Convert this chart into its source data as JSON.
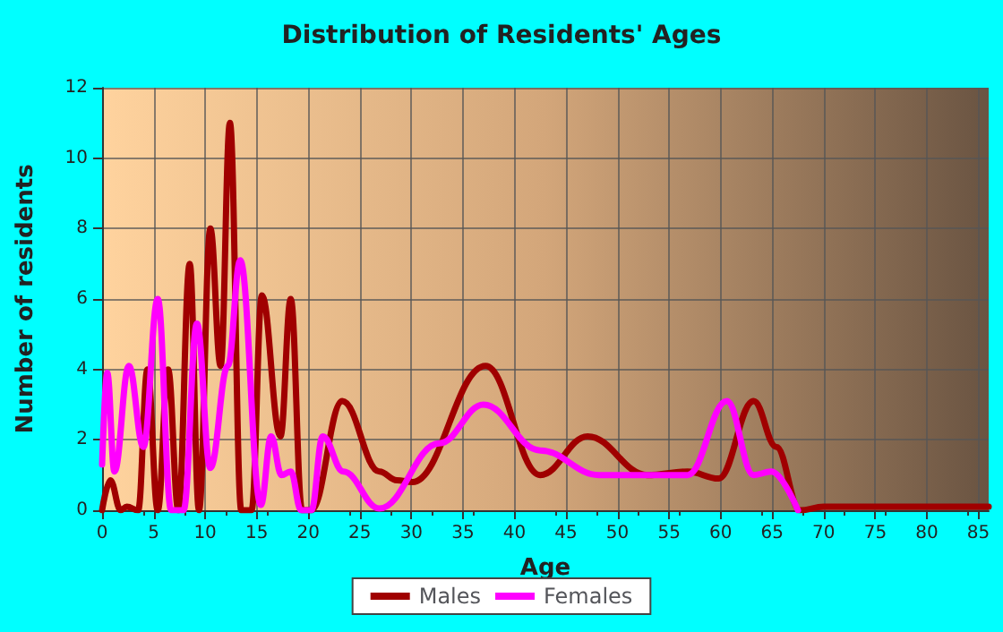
{
  "chart_data": {
    "type": "line",
    "title": "Distribution of Residents' Ages",
    "xlabel": "Age",
    "ylabel": "Number of residents",
    "xlim": [
      0,
      86
    ],
    "xticks": [
      0,
      5,
      10,
      15,
      20,
      25,
      30,
      35,
      40,
      45,
      50,
      55,
      60,
      65,
      70,
      75,
      80,
      85
    ],
    "ylim": [
      0,
      12
    ],
    "yticks": [
      0,
      2,
      4,
      6,
      8,
      10,
      12
    ],
    "grid": true,
    "legend": "bottom",
    "marker": "none",
    "line_style": "solid",
    "series": [
      {
        "name": "Males",
        "color": "#a00000",
        "x": [
          0,
          0.8,
          1.8,
          2.4,
          3.5,
          4.4,
          5.4,
          6.4,
          7.4,
          8.5,
          9.4,
          10.5,
          11.5,
          12.4,
          13.5,
          14.5,
          15.5,
          17.3,
          18.3,
          19.4,
          20.3,
          23.3,
          26.9,
          28.6,
          30.1,
          37.2,
          42.5,
          47.1,
          52.9,
          56.8,
          59.8,
          63.2,
          65.4,
          67.7,
          70,
          75,
          80,
          86
        ],
        "values": [
          0,
          0.85,
          0,
          0.1,
          0,
          4,
          0,
          4,
          0,
          7,
          0,
          8,
          4.1,
          11,
          0,
          0,
          6.1,
          2.1,
          6,
          0,
          0,
          3.1,
          1.1,
          0.85,
          0.8,
          4.1,
          1,
          2.1,
          1,
          1.1,
          0.9,
          3.1,
          1.8,
          0,
          0.1,
          0.1,
          0.1,
          0.1
        ]
      },
      {
        "name": "Females",
        "color": "#ff00ff",
        "x": [
          0,
          0.5,
          1.2,
          2.6,
          4,
          5.4,
          6.7,
          7.9,
          9.2,
          10.5,
          12.2,
          13.4,
          15.4,
          16.4,
          17.4,
          18.3,
          19.3,
          20.3,
          21.4,
          23.4,
          26.9,
          32.7,
          37,
          42.5,
          48.2,
          53.9,
          56.8,
          60.6,
          63.2,
          64.9,
          67.5
        ],
        "values": [
          1.3,
          3.9,
          1.1,
          4.1,
          1.8,
          6,
          0,
          0,
          5.3,
          1.2,
          4.1,
          7.1,
          0.15,
          2.1,
          1,
          1.1,
          0,
          0,
          2.1,
          1.1,
          0.05,
          1.9,
          3,
          1.7,
          1,
          1,
          1,
          3.1,
          1,
          1.1,
          0
        ]
      }
    ]
  }
}
